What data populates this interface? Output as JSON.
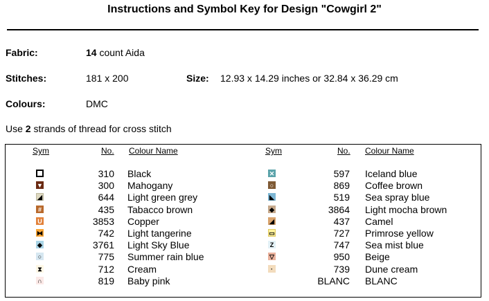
{
  "title": "Instructions and Symbol Key for Design \"Cowgirl 2\"",
  "fabric": {
    "label": "Fabric:",
    "count": "14",
    "rest": " count Aida"
  },
  "stitches": {
    "label": "Stitches:",
    "value": "181 x 200"
  },
  "size": {
    "label": "Size:",
    "value": "12.93 x 14.29 inches or 32.84 x 36.29 cm"
  },
  "colours": {
    "label": "Colours:",
    "value": "DMC"
  },
  "usage": {
    "pre": "Use ",
    "strands": "2",
    "post": " strands of thread for cross stitch"
  },
  "headers": {
    "sym": "Sym",
    "no": "No.",
    "name": "Colour Name"
  },
  "left": [
    {
      "no": "310",
      "name": "Black",
      "bg": "#ffffff",
      "fg": "#000000",
      "border": "#000000",
      "glyph": ""
    },
    {
      "no": "300",
      "name": "Mahogany",
      "bg": "#6b2a12",
      "fg": "#ffffff",
      "border": "#6b2a12",
      "glyph": "▼"
    },
    {
      "no": "644",
      "name": "Light green grey",
      "bg": "#ddd8c0",
      "fg": "#000000",
      "border": "#bdb89e",
      "glyph": "◢"
    },
    {
      "no": "435",
      "name": "Tabacco brown",
      "bg": "#b8692c",
      "fg": "#ffffff",
      "border": "#b8692c",
      "glyph": "#"
    },
    {
      "no": "3853",
      "name": "Copper",
      "bg": "#e2813a",
      "fg": "#ffffff",
      "border": "#e2813a",
      "glyph": "U"
    },
    {
      "no": "742",
      "name": "Light tangerine",
      "bg": "#f9a636",
      "fg": "#000000",
      "border": "#f9a636",
      "glyph": "⧓"
    },
    {
      "no": "3761",
      "name": "Light Sky Blue",
      "bg": "#a9d4e6",
      "fg": "#000000",
      "border": "#a9d4e6",
      "glyph": "◆"
    },
    {
      "no": "775",
      "name": "Summer rain blue",
      "bg": "#d6e7f1",
      "fg": "#000000",
      "border": "#d6e7f1",
      "glyph": "○"
    },
    {
      "no": "712",
      "name": "Cream",
      "bg": "#fff8e6",
      "fg": "#000000",
      "border": "#fff8e6",
      "glyph": "⧗"
    },
    {
      "no": "819",
      "name": "Baby pink",
      "bg": "#fbe9e7",
      "fg": "#000000",
      "border": "#fbe9e7",
      "glyph": "∩"
    }
  ],
  "right": [
    {
      "no": "597",
      "name": "Iceland blue",
      "bg": "#5ba3aa",
      "fg": "#ffffff",
      "border": "#5ba3aa",
      "glyph": "✕"
    },
    {
      "no": "869",
      "name": "Coffee brown",
      "bg": "#7f5a35",
      "fg": "#ffffff",
      "border": "#7f5a35",
      "glyph": "○"
    },
    {
      "no": "519",
      "name": "Sea spray blue",
      "bg": "#7db6d4",
      "fg": "#000000",
      "border": "#7db6d4",
      "glyph": "◣"
    },
    {
      "no": "3864",
      "name": "Light mocha brown",
      "bg": "#c6a98c",
      "fg": "#000000",
      "border": "#c6a98c",
      "glyph": "◆"
    },
    {
      "no": "437",
      "name": "Camel",
      "bg": "#d9a46e",
      "fg": "#000000",
      "border": "#d9a46e",
      "glyph": "◢"
    },
    {
      "no": "727",
      "name": "Primrose yellow",
      "bg": "#fff29a",
      "fg": "#000000",
      "border": "#e0c85e",
      "glyph": "▭"
    },
    {
      "no": "747",
      "name": "Sea mist blue",
      "bg": "#e3f1f6",
      "fg": "#000000",
      "border": "#e3f1f6",
      "glyph": "Z"
    },
    {
      "no": "950",
      "name": "Beige",
      "bg": "#eab19c",
      "fg": "#000000",
      "border": "#eab19c",
      "glyph": "▽"
    },
    {
      "no": "739",
      "name": "Dune cream",
      "bg": "#f3dcbd",
      "fg": "#000000",
      "border": "#f3dcbd",
      "glyph": "·"
    },
    {
      "no": "BLANC",
      "name": "BLANC",
      "bg": "#ffffff",
      "fg": "#000000",
      "border": "#ffffff",
      "glyph": ""
    }
  ]
}
